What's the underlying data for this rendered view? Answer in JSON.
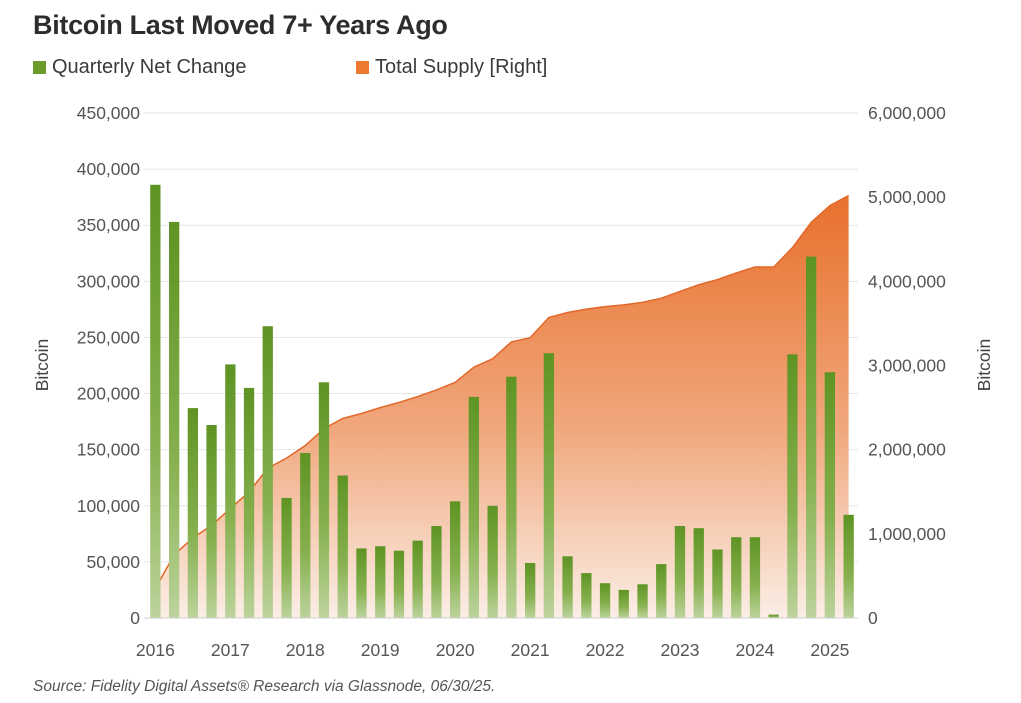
{
  "chart_data": {
    "type": "bar",
    "title": "Bitcoin Last Moved 7+ Years Ago",
    "source": "Source: Fidelity Digital Assets® Research via Glassnode, 06/30/25.",
    "legend": [
      {
        "label": "Quarterly Net Change",
        "color": "#6a9a2a"
      },
      {
        "label": "Total Supply [Right]",
        "color": "#ec7a2e"
      }
    ],
    "ylabel_left": "Bitcoin",
    "ylabel_right": "Bitcoin",
    "ylim_left": [
      0,
      450000
    ],
    "ylim_right": [
      0,
      6000000
    ],
    "y_ticks_left": [
      "450,000",
      "400,000",
      "350,000",
      "300,000",
      "250,000",
      "200,000",
      "150,000",
      "100,000",
      "50,000",
      "0"
    ],
    "y_ticks_right": [
      "6,000,000",
      "5,000,000",
      "4,000,000",
      "3,000,000",
      "2,000,000",
      "1,000,000",
      "0"
    ],
    "x_ticks": [
      "2016",
      "2017",
      "2018",
      "2019",
      "2020",
      "2021",
      "2022",
      "2023",
      "2024",
      "2025"
    ],
    "legend_placement": "top-left",
    "grid": true,
    "series": [
      {
        "name": "Quarterly Net Change",
        "type": "bar",
        "axis": "left",
        "values": [
          386000,
          353000,
          187000,
          172000,
          226000,
          205000,
          260000,
          107000,
          147000,
          210000,
          127000,
          62000,
          64000,
          60000,
          69000,
          82000,
          104000,
          197000,
          100000,
          215000,
          49000,
          236000,
          55000,
          40000,
          31000,
          25000,
          30000,
          48000,
          82000,
          80000,
          61000,
          72000,
          72000,
          3000,
          235000,
          322000,
          219000,
          92000
        ]
      },
      {
        "name": "Total Supply [Right]",
        "type": "area",
        "axis": "right",
        "values": [
          350000,
          750000,
          950000,
          1100000,
          1300000,
          1500000,
          1780000,
          1900000,
          2050000,
          2250000,
          2370000,
          2430000,
          2500000,
          2560000,
          2630000,
          2710000,
          2800000,
          2980000,
          3080000,
          3280000,
          3330000,
          3570000,
          3630000,
          3670000,
          3700000,
          3720000,
          3750000,
          3800000,
          3880000,
          3960000,
          4020000,
          4100000,
          4170000,
          4170000,
          4400000,
          4700000,
          4900000,
          5020000
        ]
      }
    ]
  }
}
